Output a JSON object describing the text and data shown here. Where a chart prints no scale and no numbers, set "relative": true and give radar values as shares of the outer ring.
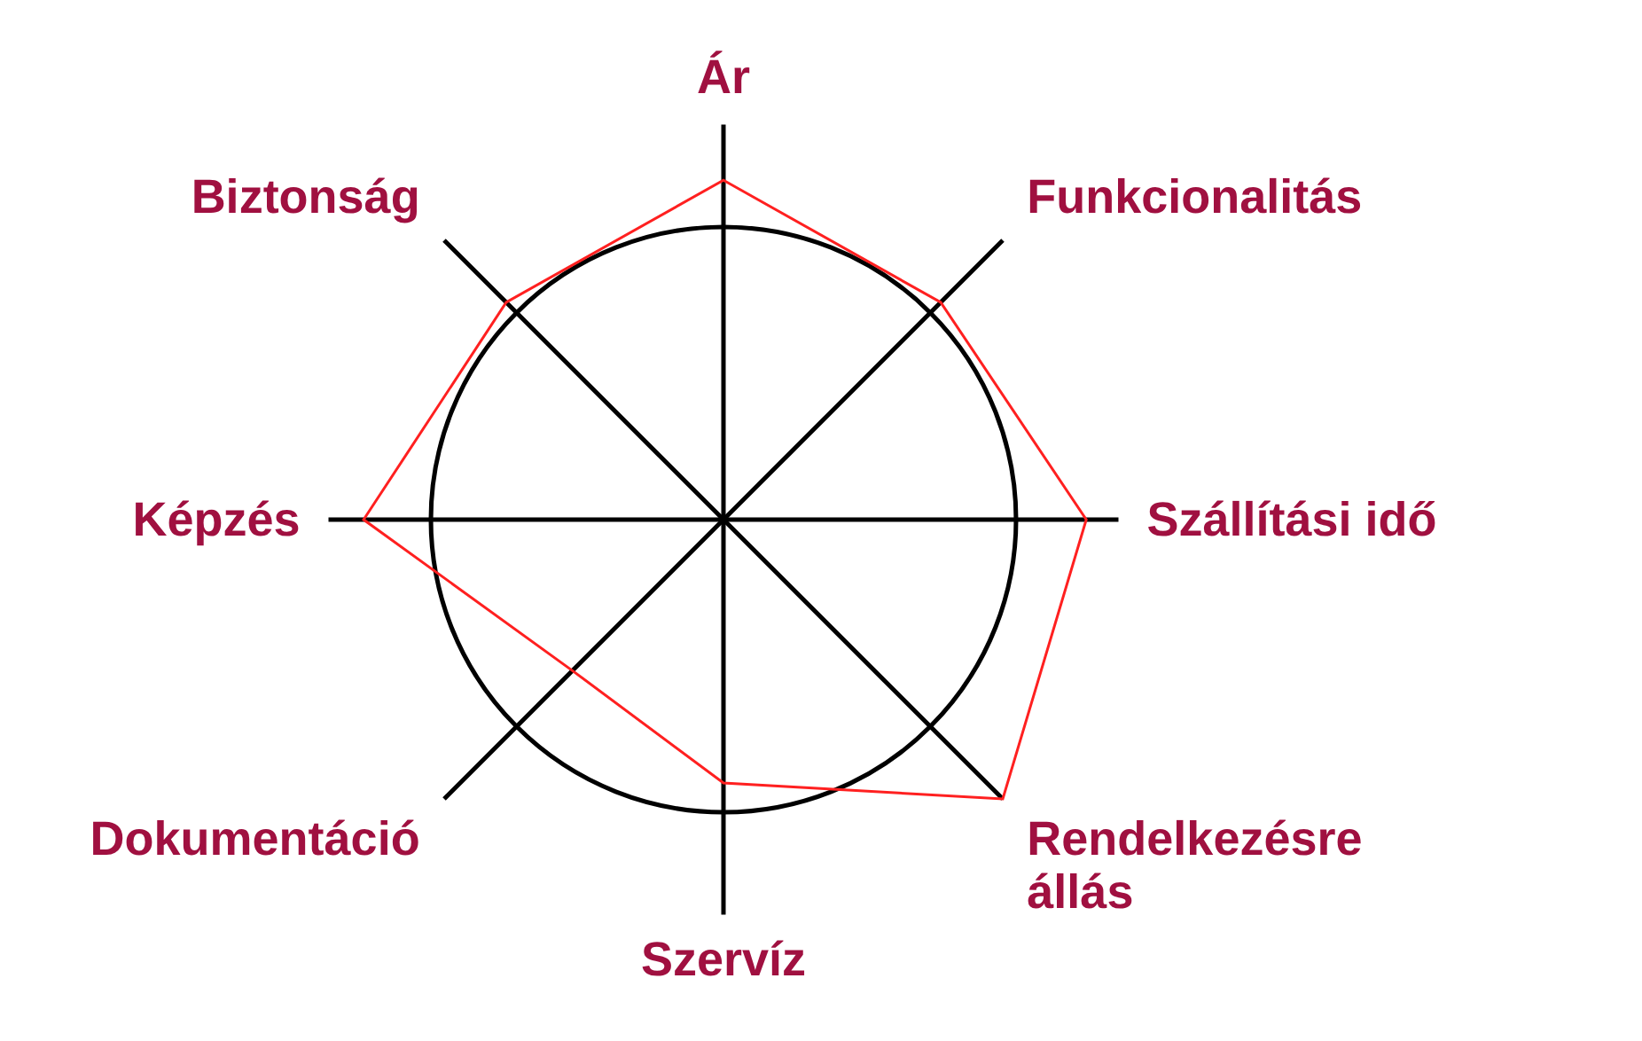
{
  "chart_data": {
    "type": "radar",
    "relative": true,
    "grid": true,
    "categories": [
      "Ár",
      "Funkcionalitás",
      "Szállítási idő",
      "Rendelkezésre állás",
      "Szervíz",
      "Dokumentáció",
      "Képzés",
      "Biztonság"
    ],
    "series": [
      {
        "color": "#ff2020",
        "values": [
          1.16,
          1.05,
          1.24,
          1.35,
          0.9,
          0.73,
          1.23,
          1.05
        ]
      }
    ]
  }
}
